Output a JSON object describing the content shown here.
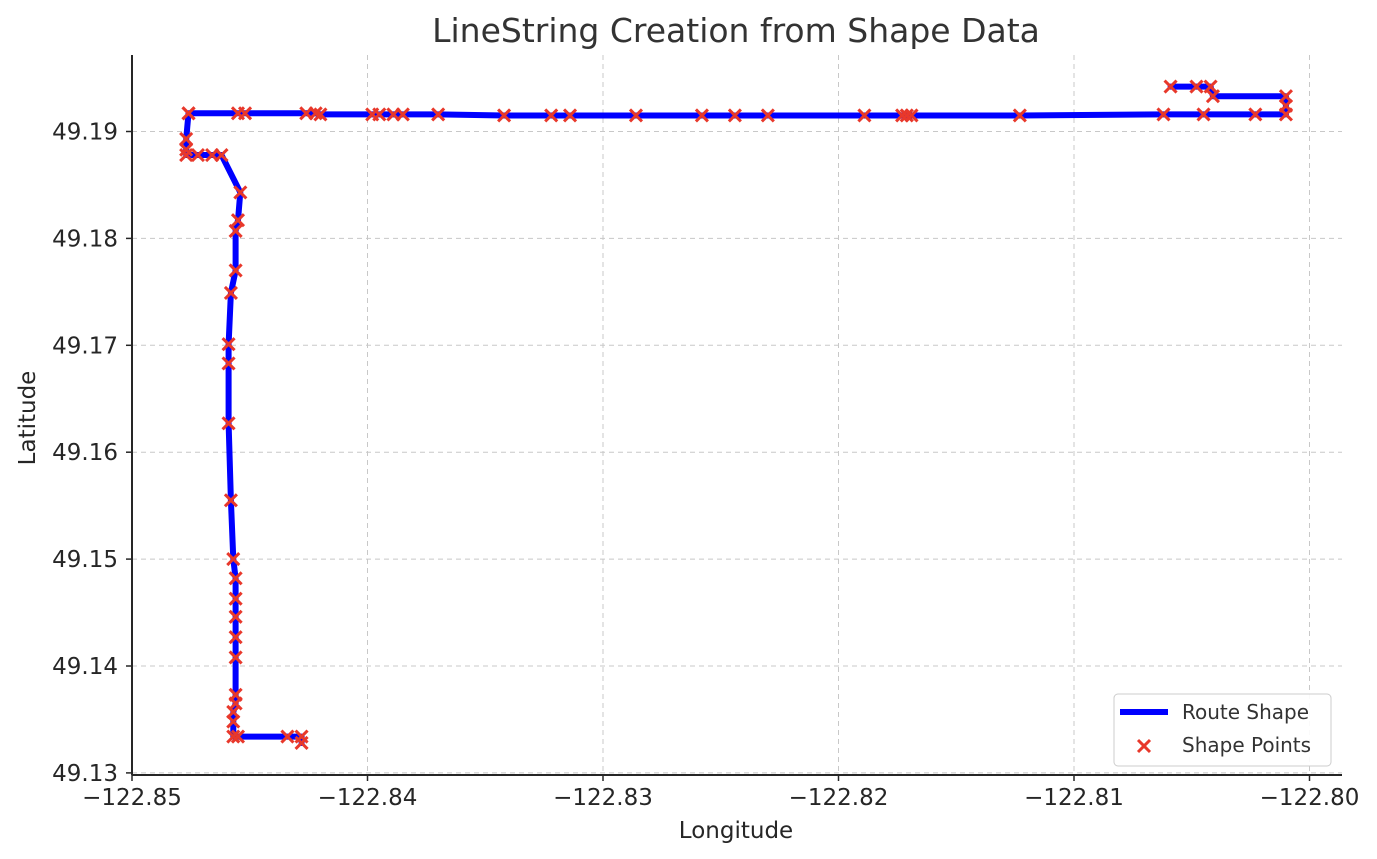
{
  "chart_data": {
    "type": "line",
    "title": "LineString Creation from Shape Data",
    "xlabel": "Longitude",
    "ylabel": "Latitude",
    "xlim": [
      -122.85,
      -122.8
    ],
    "ylim": [
      49.13,
      49.197
    ],
    "x_ticks": [
      -122.85,
      -122.84,
      -122.83,
      -122.82,
      -122.81,
      -122.8
    ],
    "x_tick_labels": [
      "−122.85",
      "−122.84",
      "−122.83",
      "−122.82",
      "−122.81",
      "−122.80"
    ],
    "y_ticks": [
      49.13,
      49.14,
      49.15,
      49.16,
      49.17,
      49.18,
      49.19
    ],
    "y_tick_labels": [
      "49.13",
      "49.14",
      "49.15",
      "49.16",
      "49.17",
      "49.18",
      "49.19"
    ],
    "grid": true,
    "legend_position": "lower-right",
    "series": [
      {
        "name": "Route Shape",
        "kind": "line",
        "color": "#0000ff",
        "x": [
          -122.8428,
          -122.8428,
          -122.8434,
          -122.8455,
          -122.8457,
          -122.8457,
          -122.8457,
          -122.8456,
          -122.8456,
          -122.8456,
          -122.8456,
          -122.8456,
          -122.8456,
          -122.8456,
          -122.8457,
          -122.8458,
          -122.8459,
          -122.8459,
          -122.8459,
          -122.8458,
          -122.8456,
          -122.8456,
          -122.8455,
          -122.8454,
          -122.8462,
          -122.8466,
          -122.8472,
          -122.8477,
          -122.8477,
          -122.8477,
          -122.8476,
          -122.8476,
          -122.8455,
          -122.8452,
          -122.8426,
          -122.8422,
          -122.842,
          -122.8398,
          -122.8395,
          -122.8389,
          -122.8385,
          -122.837,
          -122.8342,
          -122.8322,
          -122.8314,
          -122.8286,
          -122.8258,
          -122.8244,
          -122.823,
          -122.8189,
          -122.8173,
          -122.8171,
          -122.8169,
          -122.8123,
          -122.8062,
          -122.8045,
          -122.8023,
          -122.801,
          -122.801,
          -122.801,
          -122.8041,
          -122.8042,
          -122.8048,
          -122.8059
        ],
        "y": [
          49.1328,
          49.1334,
          49.1334,
          49.1334,
          49.1334,
          49.1348,
          49.1357,
          49.1365,
          49.1373,
          49.1408,
          49.1427,
          49.1446,
          49.1463,
          49.1482,
          49.15,
          49.1555,
          49.1627,
          49.1683,
          49.1701,
          49.1749,
          49.177,
          49.1807,
          49.1817,
          49.1843,
          49.1878,
          49.1878,
          49.1878,
          49.1878,
          49.1883,
          49.1893,
          49.1917,
          49.1917,
          49.1917,
          49.1917,
          49.1917,
          49.1917,
          49.1916,
          49.1916,
          49.1916,
          49.1916,
          49.1916,
          49.1916,
          49.1915,
          49.1915,
          49.1915,
          49.1915,
          49.1915,
          49.1915,
          49.1915,
          49.1915,
          49.1915,
          49.1915,
          49.1915,
          49.1915,
          49.1916,
          49.1916,
          49.1916,
          49.1916,
          49.1924,
          49.1933,
          49.1933,
          49.1942,
          49.1942,
          49.1942
        ]
      },
      {
        "name": "Shape Points",
        "kind": "scatter",
        "marker": "x",
        "color": "#e8382b"
      }
    ]
  }
}
